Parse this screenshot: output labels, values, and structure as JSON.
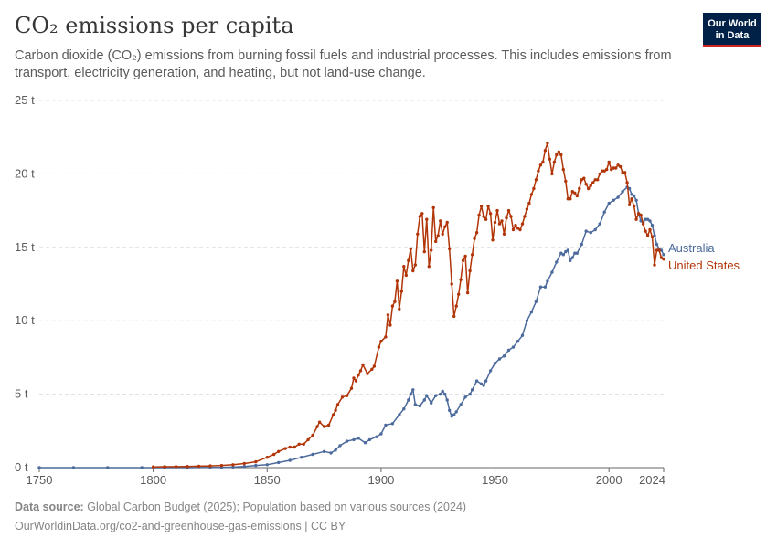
{
  "header": {
    "title": "CO₂ emissions per capita",
    "subtitle": "Carbon dioxide (CO₂) emissions from burning fossil fuels and industrial processes. This includes emissions from transport, electricity generation, and heating, but not land-use change.",
    "logo_line1": "Our World",
    "logo_line2": "in Data"
  },
  "footer": {
    "source_label": "Data source:",
    "source_text": "Global Carbon Budget (2025); Population based on various sources (2024)",
    "url_text": "OurWorldinData.org/co2-and-greenhouse-gas-emissions | CC BY"
  },
  "colors": {
    "australia": "#4c6a9c",
    "united_states": "#b13507",
    "grid": "#dddddd",
    "axis": "#666666",
    "text": "#5b5b5b"
  },
  "chart_data": {
    "type": "line",
    "title": "CO₂ emissions per capita",
    "unit_suffix": " t",
    "xlim": [
      1750,
      2024
    ],
    "ylim": [
      0,
      25
    ],
    "x_ticks": [
      1750,
      1800,
      1850,
      1900,
      1950,
      2000,
      2024
    ],
    "y_ticks": [
      0,
      5,
      10,
      15,
      20,
      25
    ],
    "y_tick_labels": [
      "0 t",
      "5 t",
      "10 t",
      "15 t",
      "20 t",
      "25 t"
    ],
    "grid": "horizontal dashed",
    "legend": "line-end labels, right",
    "series": [
      {
        "name": "Australia",
        "color": "#4c6a9c",
        "points": [
          [
            1750,
            0
          ],
          [
            1765,
            0
          ],
          [
            1780,
            0
          ],
          [
            1795,
            0
          ],
          [
            1805,
            0
          ],
          [
            1815,
            0
          ],
          [
            1825,
            0.01
          ],
          [
            1830,
            0.02
          ],
          [
            1835,
            0.04
          ],
          [
            1840,
            0.08
          ],
          [
            1845,
            0.15
          ],
          [
            1850,
            0.2
          ],
          [
            1855,
            0.35
          ],
          [
            1860,
            0.5
          ],
          [
            1865,
            0.7
          ],
          [
            1870,
            0.9
          ],
          [
            1875,
            1.1
          ],
          [
            1878,
            1.0
          ],
          [
            1880,
            1.2
          ],
          [
            1882,
            1.5
          ],
          [
            1885,
            1.8
          ],
          [
            1888,
            1.9
          ],
          [
            1890,
            2.0
          ],
          [
            1893,
            1.7
          ],
          [
            1895,
            1.9
          ],
          [
            1898,
            2.1
          ],
          [
            1900,
            2.3
          ],
          [
            1902,
            2.9
          ],
          [
            1905,
            3.0
          ],
          [
            1908,
            3.6
          ],
          [
            1910,
            4.0
          ],
          [
            1912,
            4.6
          ],
          [
            1913,
            5.0
          ],
          [
            1914,
            5.3
          ],
          [
            1915,
            4.3
          ],
          [
            1917,
            4.2
          ],
          [
            1919,
            4.6
          ],
          [
            1920,
            4.9
          ],
          [
            1922,
            4.4
          ],
          [
            1924,
            4.9
          ],
          [
            1926,
            5.0
          ],
          [
            1927,
            5.2
          ],
          [
            1928,
            5.0
          ],
          [
            1929,
            4.6
          ],
          [
            1930,
            3.9
          ],
          [
            1931,
            3.5
          ],
          [
            1932,
            3.6
          ],
          [
            1933,
            3.8
          ],
          [
            1935,
            4.3
          ],
          [
            1937,
            4.8
          ],
          [
            1939,
            5.0
          ],
          [
            1940,
            5.3
          ],
          [
            1942,
            5.9
          ],
          [
            1944,
            5.7
          ],
          [
            1945,
            5.6
          ],
          [
            1946,
            5.9
          ],
          [
            1948,
            6.6
          ],
          [
            1950,
            7.1
          ],
          [
            1952,
            7.4
          ],
          [
            1954,
            7.6
          ],
          [
            1956,
            8.0
          ],
          [
            1958,
            8.2
          ],
          [
            1960,
            8.6
          ],
          [
            1962,
            9.0
          ],
          [
            1964,
            10.0
          ],
          [
            1966,
            10.6
          ],
          [
            1968,
            11.3
          ],
          [
            1970,
            12.3
          ],
          [
            1972,
            12.3
          ],
          [
            1973,
            12.7
          ],
          [
            1975,
            13.3
          ],
          [
            1977,
            14.0
          ],
          [
            1979,
            14.6
          ],
          [
            1980,
            14.5
          ],
          [
            1981,
            14.7
          ],
          [
            1982,
            14.8
          ],
          [
            1983,
            14.1
          ],
          [
            1984,
            14.3
          ],
          [
            1985,
            14.6
          ],
          [
            1986,
            14.6
          ],
          [
            1988,
            15.2
          ],
          [
            1990,
            16.1
          ],
          [
            1992,
            16.0
          ],
          [
            1994,
            16.2
          ],
          [
            1996,
            16.6
          ],
          [
            1998,
            17.4
          ],
          [
            2000,
            18.0
          ],
          [
            2002,
            18.2
          ],
          [
            2004,
            18.4
          ],
          [
            2006,
            18.8
          ],
          [
            2008,
            19.1
          ],
          [
            2009,
            19.0
          ],
          [
            2010,
            18.6
          ],
          [
            2011,
            18.5
          ],
          [
            2012,
            18.2
          ],
          [
            2013,
            17.3
          ],
          [
            2014,
            16.8
          ],
          [
            2015,
            16.7
          ],
          [
            2016,
            16.9
          ],
          [
            2017,
            16.9
          ],
          [
            2018,
            16.8
          ],
          [
            2019,
            16.5
          ],
          [
            2020,
            15.8
          ],
          [
            2021,
            15.2
          ],
          [
            2022,
            14.9
          ],
          [
            2023,
            14.8
          ],
          [
            2024,
            14.5
          ]
        ]
      },
      {
        "name": "United States",
        "color": "#b13507",
        "points": [
          [
            1800,
            0.05
          ],
          [
            1805,
            0.06
          ],
          [
            1810,
            0.07
          ],
          [
            1815,
            0.08
          ],
          [
            1820,
            0.1
          ],
          [
            1825,
            0.12
          ],
          [
            1830,
            0.15
          ],
          [
            1835,
            0.2
          ],
          [
            1840,
            0.28
          ],
          [
            1845,
            0.4
          ],
          [
            1850,
            0.7
          ],
          [
            1853,
            0.9
          ],
          [
            1855,
            1.1
          ],
          [
            1858,
            1.3
          ],
          [
            1860,
            1.4
          ],
          [
            1862,
            1.4
          ],
          [
            1864,
            1.6
          ],
          [
            1866,
            1.6
          ],
          [
            1868,
            1.9
          ],
          [
            1870,
            2.2
          ],
          [
            1872,
            2.8
          ],
          [
            1873,
            3.1
          ],
          [
            1875,
            2.8
          ],
          [
            1877,
            2.9
          ],
          [
            1879,
            3.6
          ],
          [
            1880,
            3.9
          ],
          [
            1881,
            4.3
          ],
          [
            1883,
            4.8
          ],
          [
            1885,
            4.9
          ],
          [
            1887,
            5.4
          ],
          [
            1888,
            6.1
          ],
          [
            1889,
            5.9
          ],
          [
            1890,
            6.3
          ],
          [
            1891,
            6.6
          ],
          [
            1892,
            7.0
          ],
          [
            1894,
            6.4
          ],
          [
            1896,
            6.7
          ],
          [
            1897,
            6.9
          ],
          [
            1899,
            8.2
          ],
          [
            1900,
            8.6
          ],
          [
            1902,
            8.9
          ],
          [
            1903,
            10.4
          ],
          [
            1904,
            9.7
          ],
          [
            1905,
            11.0
          ],
          [
            1906,
            11.3
          ],
          [
            1907,
            12.7
          ],
          [
            1908,
            10.8
          ],
          [
            1909,
            12.0
          ],
          [
            1910,
            13.7
          ],
          [
            1911,
            13.1
          ],
          [
            1912,
            14.1
          ],
          [
            1913,
            14.9
          ],
          [
            1914,
            13.4
          ],
          [
            1915,
            13.8
          ],
          [
            1916,
            15.9
          ],
          [
            1917,
            17.1
          ],
          [
            1918,
            17.3
          ],
          [
            1919,
            14.7
          ],
          [
            1920,
            16.9
          ],
          [
            1921,
            13.7
          ],
          [
            1922,
            14.8
          ],
          [
            1923,
            17.7
          ],
          [
            1924,
            15.4
          ],
          [
            1925,
            15.8
          ],
          [
            1926,
            16.8
          ],
          [
            1927,
            15.9
          ],
          [
            1928,
            16.4
          ],
          [
            1929,
            16.7
          ],
          [
            1930,
            14.9
          ],
          [
            1931,
            12.5
          ],
          [
            1932,
            10.3
          ],
          [
            1933,
            11.0
          ],
          [
            1934,
            11.8
          ],
          [
            1935,
            12.8
          ],
          [
            1936,
            14.1
          ],
          [
            1937,
            14.4
          ],
          [
            1938,
            11.9
          ],
          [
            1939,
            13.4
          ],
          [
            1940,
            14.5
          ],
          [
            1941,
            15.6
          ],
          [
            1942,
            16.0
          ],
          [
            1943,
            17.2
          ],
          [
            1944,
            17.8
          ],
          [
            1945,
            17.1
          ],
          [
            1946,
            16.9
          ],
          [
            1947,
            17.8
          ],
          [
            1948,
            17.3
          ],
          [
            1949,
            15.5
          ],
          [
            1950,
            16.7
          ],
          [
            1951,
            17.5
          ],
          [
            1952,
            16.6
          ],
          [
            1953,
            16.8
          ],
          [
            1954,
            15.9
          ],
          [
            1955,
            17.0
          ],
          [
            1956,
            17.5
          ],
          [
            1957,
            17.1
          ],
          [
            1958,
            16.2
          ],
          [
            1959,
            16.5
          ],
          [
            1960,
            16.3
          ],
          [
            1961,
            16.2
          ],
          [
            1962,
            16.6
          ],
          [
            1963,
            17.1
          ],
          [
            1964,
            17.6
          ],
          [
            1965,
            18.0
          ],
          [
            1966,
            18.6
          ],
          [
            1967,
            19.0
          ],
          [
            1968,
            19.6
          ],
          [
            1969,
            20.2
          ],
          [
            1970,
            20.6
          ],
          [
            1971,
            20.8
          ],
          [
            1972,
            21.6
          ],
          [
            1973,
            22.1
          ],
          [
            1974,
            21.0
          ],
          [
            1975,
            20.0
          ],
          [
            1976,
            20.8
          ],
          [
            1977,
            21.3
          ],
          [
            1978,
            21.5
          ],
          [
            1979,
            21.3
          ],
          [
            1980,
            20.3
          ],
          [
            1981,
            19.5
          ],
          [
            1982,
            18.3
          ],
          [
            1983,
            18.3
          ],
          [
            1984,
            18.8
          ],
          [
            1985,
            18.7
          ],
          [
            1986,
            18.5
          ],
          [
            1987,
            19.0
          ],
          [
            1988,
            19.6
          ],
          [
            1989,
            19.7
          ],
          [
            1990,
            19.3
          ],
          [
            1991,
            19.0
          ],
          [
            1992,
            19.2
          ],
          [
            1993,
            19.4
          ],
          [
            1994,
            19.6
          ],
          [
            1995,
            19.6
          ],
          [
            1996,
            20.0
          ],
          [
            1997,
            20.2
          ],
          [
            1998,
            20.2
          ],
          [
            1999,
            20.3
          ],
          [
            2000,
            20.8
          ],
          [
            2001,
            20.3
          ],
          [
            2002,
            20.4
          ],
          [
            2003,
            20.4
          ],
          [
            2004,
            20.6
          ],
          [
            2005,
            20.5
          ],
          [
            2006,
            20.1
          ],
          [
            2007,
            20.1
          ],
          [
            2008,
            19.4
          ],
          [
            2009,
            17.9
          ],
          [
            2010,
            18.3
          ],
          [
            2011,
            17.8
          ],
          [
            2012,
            16.9
          ],
          [
            2013,
            17.3
          ],
          [
            2014,
            17.2
          ],
          [
            2015,
            16.6
          ],
          [
            2016,
            16.1
          ],
          [
            2017,
            15.8
          ],
          [
            2018,
            16.2
          ],
          [
            2019,
            15.7
          ],
          [
            2020,
            13.8
          ],
          [
            2021,
            14.8
          ],
          [
            2022,
            14.8
          ],
          [
            2023,
            14.3
          ],
          [
            2024,
            14.2
          ]
        ]
      }
    ]
  }
}
